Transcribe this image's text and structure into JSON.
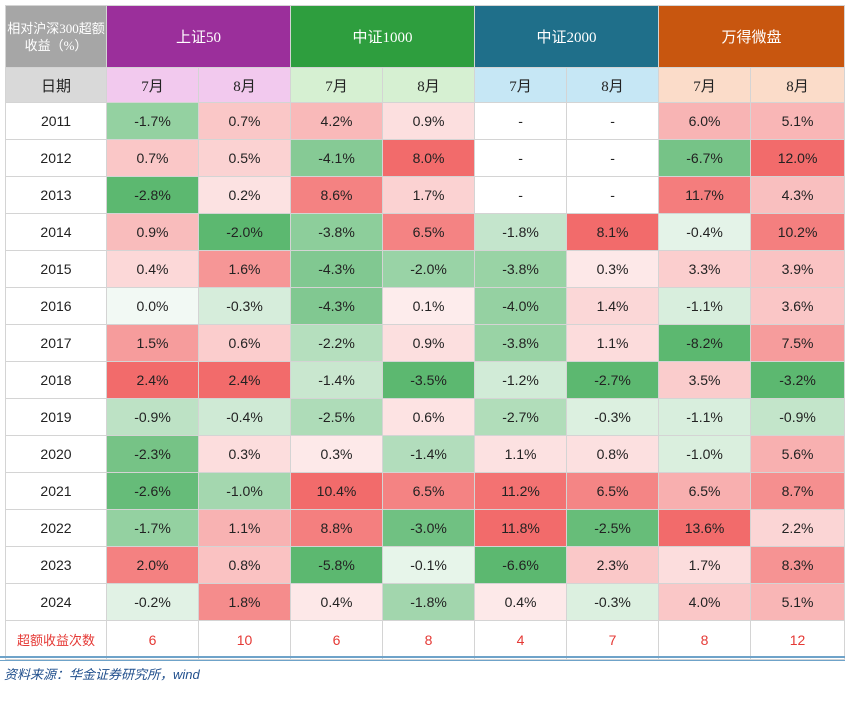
{
  "header": {
    "corner_label": "相对沪深300超额收益（%）",
    "date_label": "日期",
    "groups": [
      {
        "name": "上证50",
        "color": "#9b2f9b",
        "sub_color": "#f2c9ee"
      },
      {
        "name": "中证1000",
        "color": "#2e9e3e",
        "sub_color": "#d6f0d2"
      },
      {
        "name": "中证2000",
        "color": "#1f6f8a",
        "sub_color": "#c6e7f5"
      },
      {
        "name": "万得微盘",
        "color": "#c8560f",
        "sub_color": "#fbdcc9"
      }
    ],
    "months": [
      "7月",
      "8月",
      "7月",
      "8月",
      "7月",
      "8月",
      "7月",
      "8月"
    ]
  },
  "rows": [
    {
      "year": "2011",
      "cells": [
        "-1.7%",
        "0.7%",
        "4.2%",
        "0.9%",
        "-",
        "-",
        "6.0%",
        "5.1%"
      ]
    },
    {
      "year": "2012",
      "cells": [
        "0.7%",
        "0.5%",
        "-4.1%",
        "8.0%",
        "-",
        "-",
        "-6.7%",
        "12.0%"
      ]
    },
    {
      "year": "2013",
      "cells": [
        "-2.8%",
        "0.2%",
        "8.6%",
        "1.7%",
        "-",
        "-",
        "11.7%",
        "4.3%"
      ]
    },
    {
      "year": "2014",
      "cells": [
        "0.9%",
        "-2.0%",
        "-3.8%",
        "6.5%",
        "-1.8%",
        "8.1%",
        "-0.4%",
        "10.2%"
      ]
    },
    {
      "year": "2015",
      "cells": [
        "0.4%",
        "1.6%",
        "-4.3%",
        "-2.0%",
        "-3.8%",
        "0.3%",
        "3.3%",
        "3.9%"
      ]
    },
    {
      "year": "2016",
      "cells": [
        "0.0%",
        "-0.3%",
        "-4.3%",
        "0.1%",
        "-4.0%",
        "1.4%",
        "-1.1%",
        "3.6%"
      ]
    },
    {
      "year": "2017",
      "cells": [
        "1.5%",
        "0.6%",
        "-2.2%",
        "0.9%",
        "-3.8%",
        "1.1%",
        "-8.2%",
        "7.5%"
      ]
    },
    {
      "year": "2018",
      "cells": [
        "2.4%",
        "2.4%",
        "-1.4%",
        "-3.5%",
        "-1.2%",
        "-2.7%",
        "3.5%",
        "-3.2%"
      ]
    },
    {
      "year": "2019",
      "cells": [
        "-0.9%",
        "-0.4%",
        "-2.5%",
        "0.6%",
        "-2.7%",
        "-0.3%",
        "-1.1%",
        "-0.9%"
      ]
    },
    {
      "year": "2020",
      "cells": [
        "-2.3%",
        "0.3%",
        "0.3%",
        "-1.4%",
        "1.1%",
        "0.8%",
        "-1.0%",
        "5.6%"
      ]
    },
    {
      "year": "2021",
      "cells": [
        "-2.6%",
        "-1.0%",
        "10.4%",
        "6.5%",
        "11.2%",
        "6.5%",
        "6.5%",
        "8.7%"
      ]
    },
    {
      "year": "2022",
      "cells": [
        "-1.7%",
        "1.1%",
        "8.8%",
        "-3.0%",
        "11.8%",
        "-2.5%",
        "13.6%",
        "2.2%"
      ]
    },
    {
      "year": "2023",
      "cells": [
        "2.0%",
        "0.8%",
        "-5.8%",
        "-0.1%",
        "-6.6%",
        "2.3%",
        "1.7%",
        "8.3%"
      ]
    },
    {
      "year": "2024",
      "cells": [
        "-0.2%",
        "1.8%",
        "0.4%",
        "-1.8%",
        "0.4%",
        "-0.3%",
        "4.0%",
        "5.1%"
      ]
    }
  ],
  "count_row": {
    "label": "超额收益次数",
    "values": [
      "6",
      "10",
      "6",
      "8",
      "4",
      "7",
      "8",
      "12"
    ]
  },
  "source": "资料来源：华金证券研究所，wind",
  "colors": {
    "positive": "#f26b6b",
    "negative": "#5cb870",
    "count_text": "#e53935"
  }
}
